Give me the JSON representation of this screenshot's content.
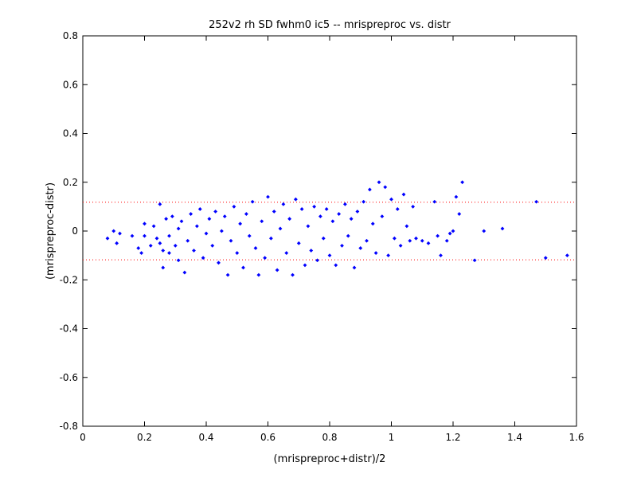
{
  "chart_data": {
    "type": "scatter",
    "title": "252v2 rh SD fwhm0 ic5 -- mrispreproc vs. distr",
    "xlabel": "(mrispreproc+distr)/2",
    "ylabel": "(mrispreproc-distr)",
    "xlim": [
      0,
      1.6
    ],
    "ylim": [
      -0.8,
      0.8
    ],
    "xticks": [
      "0",
      "0.2",
      "0.4",
      "0.6",
      "0.8",
      "1",
      "1.2",
      "1.4",
      "1.6"
    ],
    "yticks": [
      "0.8",
      "0.6",
      "0.4",
      "0.2",
      "0",
      "-0.2",
      "-0.4",
      "-0.6",
      "-0.8"
    ],
    "grid": false,
    "reference_lines": [
      0.118,
      -0.118
    ],
    "point_color": "#0000ff",
    "reference_line_color": "#ff0000",
    "series": [
      {
        "points": [
          [
            0.08,
            -0.03
          ],
          [
            0.1,
            0.0
          ],
          [
            0.11,
            -0.05
          ],
          [
            0.12,
            -0.01
          ],
          [
            0.16,
            -0.02
          ],
          [
            0.18,
            -0.07
          ],
          [
            0.19,
            -0.09
          ],
          [
            0.2,
            -0.02
          ],
          [
            0.2,
            0.03
          ],
          [
            0.22,
            -0.06
          ],
          [
            0.23,
            0.02
          ],
          [
            0.24,
            -0.03
          ],
          [
            0.25,
            -0.05
          ],
          [
            0.25,
            0.11
          ],
          [
            0.26,
            -0.08
          ],
          [
            0.26,
            -0.15
          ],
          [
            0.27,
            0.05
          ],
          [
            0.28,
            -0.02
          ],
          [
            0.28,
            -0.09
          ],
          [
            0.29,
            0.06
          ],
          [
            0.3,
            -0.06
          ],
          [
            0.31,
            0.01
          ],
          [
            0.31,
            -0.12
          ],
          [
            0.32,
            0.04
          ],
          [
            0.33,
            -0.17
          ],
          [
            0.34,
            -0.04
          ],
          [
            0.35,
            0.07
          ],
          [
            0.36,
            -0.08
          ],
          [
            0.37,
            0.02
          ],
          [
            0.38,
            0.09
          ],
          [
            0.39,
            -0.11
          ],
          [
            0.4,
            -0.01
          ],
          [
            0.41,
            0.05
          ],
          [
            0.42,
            -0.06
          ],
          [
            0.43,
            0.08
          ],
          [
            0.44,
            -0.13
          ],
          [
            0.45,
            0.0
          ],
          [
            0.46,
            0.06
          ],
          [
            0.47,
            -0.18
          ],
          [
            0.48,
            -0.04
          ],
          [
            0.49,
            0.1
          ],
          [
            0.5,
            -0.09
          ],
          [
            0.51,
            0.03
          ],
          [
            0.52,
            -0.15
          ],
          [
            0.53,
            0.07
          ],
          [
            0.54,
            -0.02
          ],
          [
            0.55,
            0.12
          ],
          [
            0.56,
            -0.07
          ],
          [
            0.57,
            -0.18
          ],
          [
            0.58,
            0.04
          ],
          [
            0.59,
            -0.11
          ],
          [
            0.6,
            0.14
          ],
          [
            0.61,
            -0.03
          ],
          [
            0.62,
            0.08
          ],
          [
            0.63,
            -0.16
          ],
          [
            0.64,
            0.01
          ],
          [
            0.65,
            0.11
          ],
          [
            0.66,
            -0.09
          ],
          [
            0.67,
            0.05
          ],
          [
            0.68,
            -0.18
          ],
          [
            0.69,
            0.13
          ],
          [
            0.7,
            -0.05
          ],
          [
            0.71,
            0.09
          ],
          [
            0.72,
            -0.14
          ],
          [
            0.73,
            0.02
          ],
          [
            0.74,
            -0.08
          ],
          [
            0.75,
            0.1
          ],
          [
            0.76,
            -0.12
          ],
          [
            0.77,
            0.06
          ],
          [
            0.78,
            -0.03
          ],
          [
            0.79,
            0.09
          ],
          [
            0.8,
            -0.1
          ],
          [
            0.81,
            0.04
          ],
          [
            0.82,
            -0.14
          ],
          [
            0.83,
            0.07
          ],
          [
            0.84,
            -0.06
          ],
          [
            0.85,
            0.11
          ],
          [
            0.86,
            -0.02
          ],
          [
            0.87,
            0.05
          ],
          [
            0.88,
            -0.15
          ],
          [
            0.89,
            0.08
          ],
          [
            0.9,
            -0.07
          ],
          [
            0.91,
            0.12
          ],
          [
            0.92,
            -0.04
          ],
          [
            0.93,
            0.17
          ],
          [
            0.94,
            0.03
          ],
          [
            0.95,
            -0.09
          ],
          [
            0.96,
            0.2
          ],
          [
            0.97,
            0.06
          ],
          [
            0.98,
            0.18
          ],
          [
            0.99,
            -0.1
          ],
          [
            1.0,
            0.13
          ],
          [
            1.01,
            -0.03
          ],
          [
            1.02,
            0.09
          ],
          [
            1.03,
            -0.06
          ],
          [
            1.04,
            0.15
          ],
          [
            1.05,
            0.02
          ],
          [
            1.06,
            -0.04
          ],
          [
            1.07,
            0.1
          ],
          [
            1.08,
            -0.03
          ],
          [
            1.1,
            -0.04
          ],
          [
            1.12,
            -0.05
          ],
          [
            1.14,
            0.12
          ],
          [
            1.15,
            -0.02
          ],
          [
            1.16,
            -0.1
          ],
          [
            1.18,
            -0.04
          ],
          [
            1.19,
            -0.01
          ],
          [
            1.2,
            0.0
          ],
          [
            1.21,
            0.14
          ],
          [
            1.22,
            0.07
          ],
          [
            1.23,
            0.2
          ],
          [
            1.27,
            -0.12
          ],
          [
            1.3,
            0.0
          ],
          [
            1.36,
            0.01
          ],
          [
            1.47,
            0.12
          ],
          [
            1.5,
            -0.11
          ],
          [
            1.57,
            -0.1
          ]
        ]
      }
    ]
  }
}
